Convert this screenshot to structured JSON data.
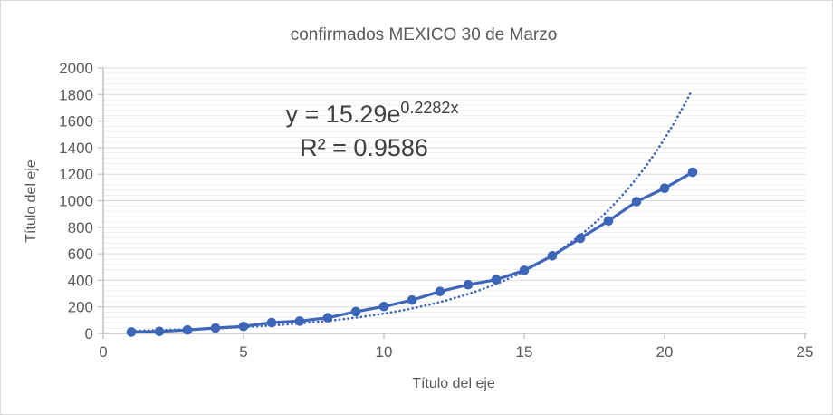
{
  "chart": {
    "title": "confirmados MEXICO 30 de Marzo",
    "x_axis_title": "Título del eje",
    "y_axis_title": "Título del eje",
    "equation_prefix": "y = 15.29e",
    "equation_exponent": "0.2282x",
    "r_squared_label": "R² = 0.9586"
  },
  "colors": {
    "series": "#3E66B8",
    "trendline": "#3E66B8",
    "title_text": "#595959",
    "tick_text": "#595959",
    "equation_text": "#404040",
    "major_grid": "#D9D9D9",
    "minor_grid": "#EFEFEF",
    "axis_line": "#BFBFBF",
    "background": "#FFFFFF",
    "frame_border": "#D9D9D9"
  },
  "chart_data": {
    "type": "line",
    "title": "confirmados MEXICO 30 de Marzo",
    "xlabel": "Título del eje",
    "ylabel": "Título del eje",
    "xlim": [
      0,
      25
    ],
    "ylim": [
      0,
      2000
    ],
    "x_ticks": [
      0,
      5,
      10,
      15,
      20,
      25
    ],
    "y_ticks": [
      0,
      200,
      400,
      600,
      800,
      1000,
      1200,
      1400,
      1600,
      1800,
      2000
    ],
    "y_minor_step": 40,
    "grid": "horizontal-major-and-minor",
    "legend": "none",
    "series": [
      {
        "name": "confirmados",
        "style": "solid-line-with-circle-markers",
        "color": "#3E66B8",
        "x": [
          1,
          2,
          3,
          4,
          5,
          6,
          7,
          8,
          9,
          10,
          11,
          12,
          13,
          14,
          15,
          16,
          17,
          18,
          19,
          20,
          21
        ],
        "y": [
          11,
          15,
          26,
          41,
          53,
          82,
          93,
          118,
          164,
          203,
          251,
          316,
          367,
          405,
          475,
          585,
          717,
          848,
          993,
          1094,
          1215
        ]
      }
    ],
    "trendline": {
      "type": "exponential",
      "a": 15.29,
      "b": 0.2282,
      "equation": "y = 15.29e^(0.2282x)",
      "r_squared": 0.9586,
      "style": "dotted",
      "color": "#3E66B8",
      "x_range": [
        1,
        21.05
      ]
    }
  }
}
